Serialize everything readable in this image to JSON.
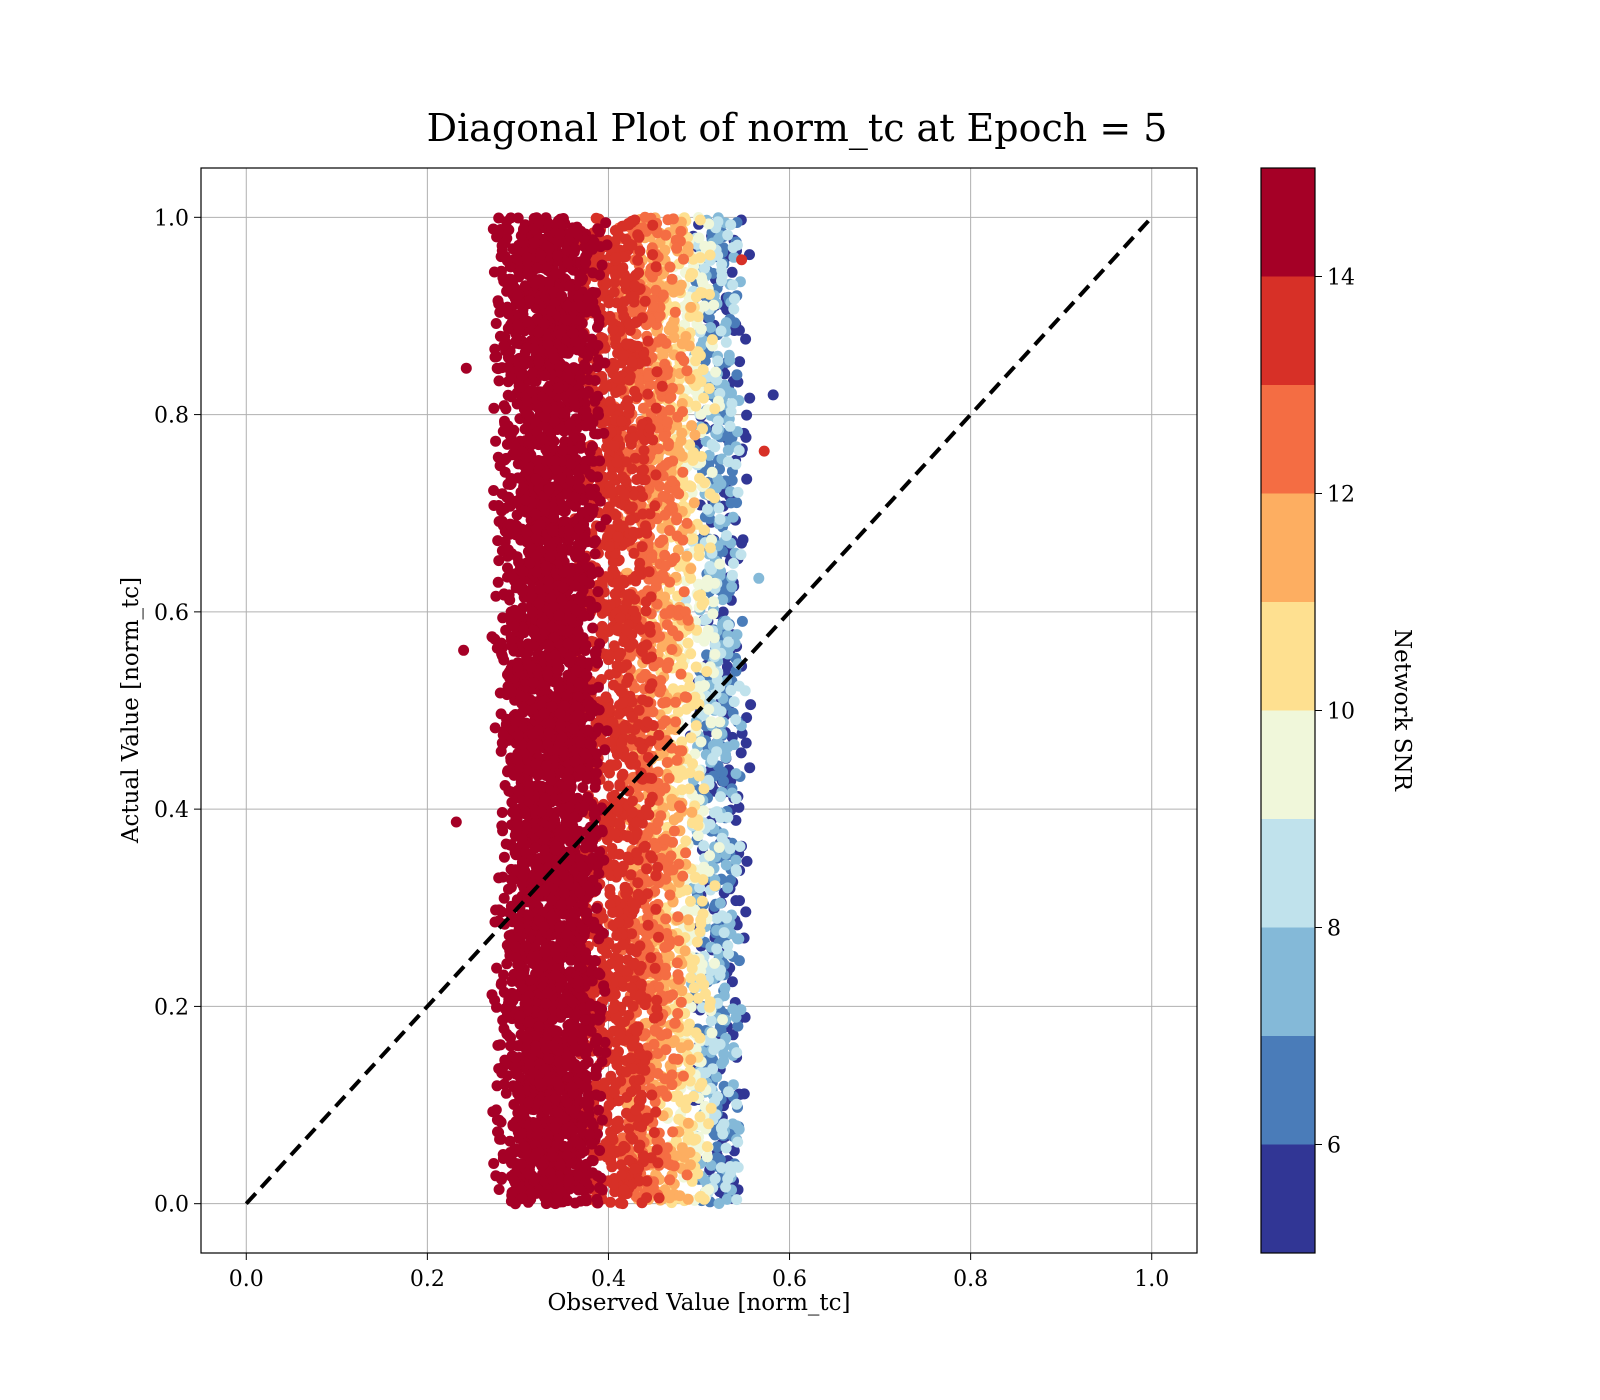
{
  "chart_data": {
    "type": "scatter",
    "title": "Diagonal Plot of norm_tc at Epoch = 5",
    "xlabel": "Observed Value [norm_tc]",
    "ylabel": "Actual Value [norm_tc]",
    "xlim": [
      -0.05,
      1.05
    ],
    "ylim": [
      -0.05,
      1.05
    ],
    "xticks": [
      "0.0",
      "0.2",
      "0.4",
      "0.6",
      "0.8",
      "1.0"
    ],
    "yticks": [
      "0.0",
      "0.2",
      "0.4",
      "0.6",
      "0.8",
      "1.0"
    ],
    "grid": true,
    "reference_line": {
      "style": "dashed",
      "color": "#000000",
      "from": [
        0,
        0
      ],
      "to": [
        1,
        1
      ]
    },
    "points_description": "dense vertical band of points with observed values ≈0.23–0.58 over actual values 0–1, colored by Network SNR; high SNR (dark red) concentrated at observed ≈0.27–0.40, lower SNR toward observed ≈0.45–0.55",
    "point_cloud": {
      "observed_range": [
        0.23,
        0.58
      ],
      "actual_range": [
        0.0,
        1.0
      ],
      "snr_bands": [
        {
          "snr_range": [
            14,
            15
          ],
          "observed_range": [
            0.27,
            0.4
          ],
          "color": "#a50026"
        },
        {
          "snr_range": [
            13,
            14
          ],
          "observed_range": [
            0.36,
            0.46
          ],
          "color": "#d73027"
        },
        {
          "snr_range": [
            12,
            13
          ],
          "observed_range": [
            0.4,
            0.49
          ],
          "color": "#f46d43"
        },
        {
          "snr_range": [
            11,
            12
          ],
          "observed_range": [
            0.41,
            0.5
          ],
          "color": "#fdae61"
        },
        {
          "snr_range": [
            10,
            11
          ],
          "observed_range": [
            0.44,
            0.52
          ],
          "color": "#fee090"
        },
        {
          "snr_range": [
            9,
            10
          ],
          "observed_range": [
            0.46,
            0.53
          ],
          "color": "#f0f7da"
        },
        {
          "snr_range": [
            8,
            9
          ],
          "observed_range": [
            0.48,
            0.55
          ],
          "color": "#c0e2ec"
        },
        {
          "snr_range": [
            7,
            8
          ],
          "observed_range": [
            0.49,
            0.55
          ],
          "color": "#84b9d8"
        },
        {
          "snr_range": [
            6,
            7
          ],
          "observed_range": [
            0.49,
            0.55
          ],
          "color": "#4a7cb9"
        },
        {
          "snr_range": [
            5,
            6
          ],
          "observed_range": [
            0.49,
            0.56
          ],
          "color": "#313695"
        }
      ]
    },
    "colorbar": {
      "label": "Network SNR",
      "range": [
        5,
        15
      ],
      "ticks": [
        "6",
        "8",
        "10",
        "12",
        "14"
      ],
      "colors": [
        "#313695",
        "#4a7cb9",
        "#84b9d8",
        "#c0e2ec",
        "#f0f7da",
        "#fee090",
        "#fdae61",
        "#f46d43",
        "#d73027",
        "#a50026"
      ]
    }
  }
}
